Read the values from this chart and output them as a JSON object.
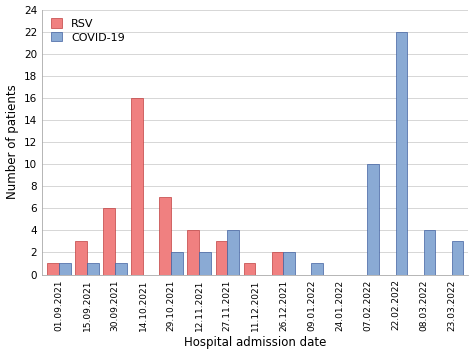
{
  "dates": [
    "01.09.2021",
    "15.09.2021",
    "30.09.2021",
    "14.10.2021",
    "29.10.2021",
    "12.11.2021",
    "27.11.2021",
    "11.12.2021",
    "26.12.2021",
    "09.01.2022",
    "24.01.2022",
    "07.02.2022",
    "22.02.2022",
    "08.03.2022",
    "23.03.2022"
  ],
  "rsv": [
    1,
    3,
    6,
    16,
    7,
    4,
    3,
    1,
    2,
    0,
    0,
    0,
    0,
    0,
    0
  ],
  "covid": [
    1,
    1,
    1,
    0,
    2,
    2,
    4,
    0,
    2,
    1,
    0,
    10,
    22,
    4,
    3
  ],
  "rsv_color": "#f08080",
  "rsv_edge_color": "#c04040",
  "covid_color": "#8aaad4",
  "covid_edge_color": "#4060a0",
  "xlabel": "Hospital admission date",
  "ylabel": "Number of patients",
  "ylim": [
    0,
    24
  ],
  "yticks": [
    0,
    2,
    4,
    6,
    8,
    10,
    12,
    14,
    16,
    18,
    20,
    22,
    24
  ],
  "bar_width": 0.42,
  "legend_rsv": "RSV",
  "legend_covid": "COVID-19",
  "background_color": "#ffffff",
  "grid_color": "#d0d0d0",
  "figsize": [
    4.74,
    3.55
  ],
  "dpi": 100
}
